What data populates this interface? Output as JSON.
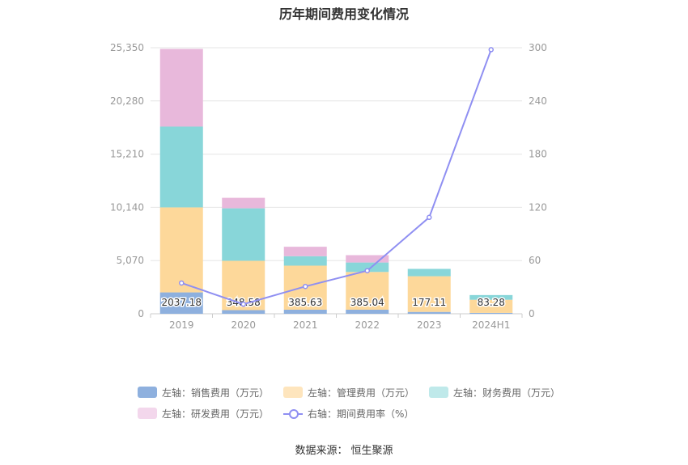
{
  "title": "历年期间费用变化情况",
  "source": {
    "label": "数据来源：",
    "value": "恒生聚源"
  },
  "chart_data": {
    "type": "bar",
    "stacked": true,
    "categories": [
      "2019",
      "2020",
      "2021",
      "2022",
      "2023",
      "2024H1"
    ],
    "left_axis": {
      "ticks": [
        "0",
        "5,070",
        "10,140",
        "15,210",
        "20,280",
        "25,350"
      ],
      "ylim": [
        0,
        25350
      ]
    },
    "right_axis": {
      "ticks": [
        "0",
        "60",
        "120",
        "180",
        "240",
        "300"
      ],
      "ylim": [
        0,
        300
      ]
    },
    "series": [
      {
        "name": "左轴：销售费用（万元）",
        "color": "#8eb0de",
        "axis": "left",
        "kind": "bar",
        "values": [
          2037.18,
          348.58,
          385.63,
          385.04,
          177.11,
          83.28
        ],
        "labels": [
          "2037.18",
          "348.58",
          "385.63",
          "385.04",
          "177.11",
          "83.28"
        ]
      },
      {
        "name": "左轴：管理费用（万元）",
        "color": "#fdd89a",
        "axis": "left",
        "kind": "bar",
        "values": [
          8100,
          4700,
          4200,
          3600,
          3400,
          1250
        ]
      },
      {
        "name": "左轴：财务费用（万元）",
        "color": "#88d6d9",
        "axis": "left",
        "kind": "bar",
        "values": [
          7700,
          5000,
          900,
          900,
          700,
          450
        ]
      },
      {
        "name": "左轴：研发费用（万元）",
        "color": "#e8b8db",
        "axis": "left",
        "kind": "bar",
        "values": [
          7400,
          1000,
          900,
          700,
          0,
          0
        ]
      },
      {
        "name": "右轴：期间费用率（%）",
        "color": "#8f8ff2",
        "axis": "right",
        "kind": "line",
        "values": [
          34.7,
          10.8,
          30.8,
          48.6,
          108.7,
          297.8
        ]
      }
    ],
    "legend_position": "bottom",
    "grid": true
  }
}
